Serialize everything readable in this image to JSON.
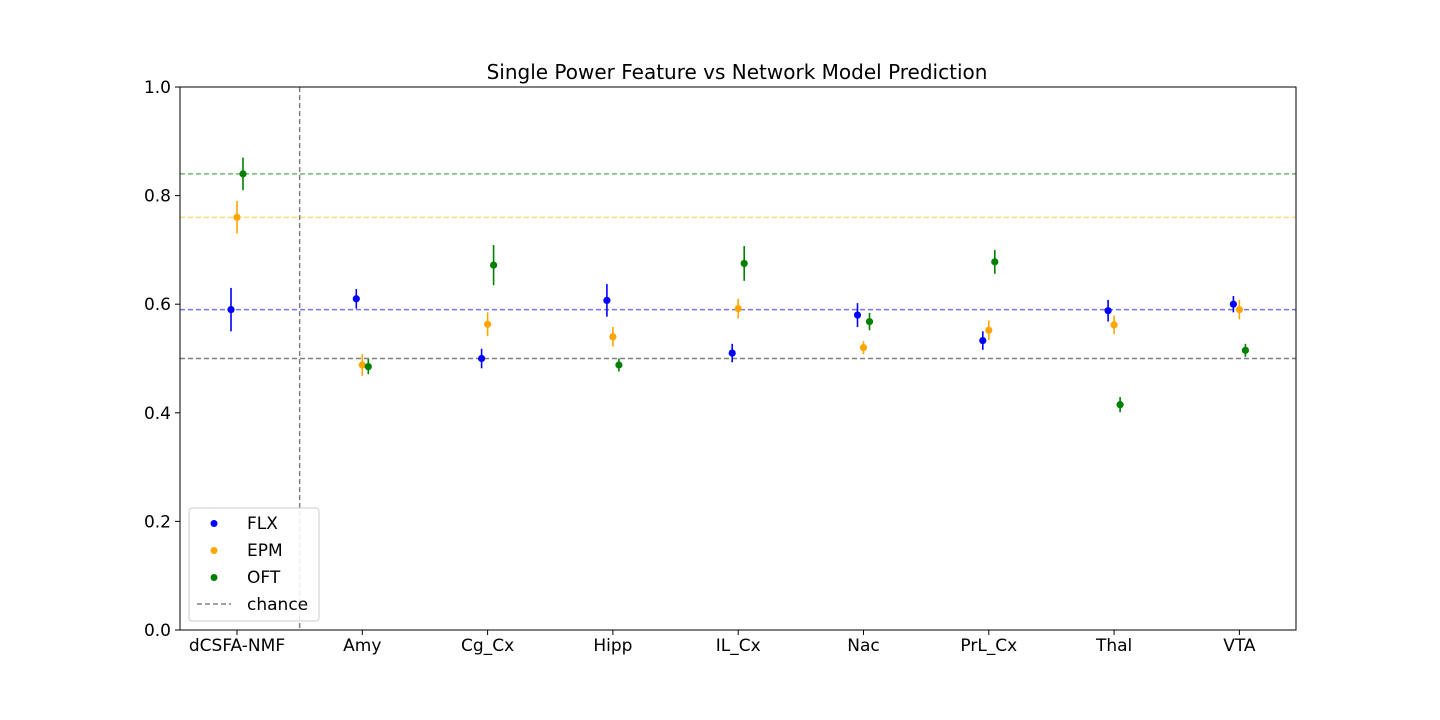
{
  "chart_data": {
    "type": "scatter",
    "title": "Single Power Feature vs Network Model Prediction",
    "xlabel": "",
    "ylabel": "",
    "ylim": [
      0.0,
      1.0
    ],
    "yticks": [
      "0.0",
      "0.2",
      "0.4",
      "0.6",
      "0.8",
      "1.0"
    ],
    "categories": [
      "dCSFA-NMF",
      "Amy",
      "Cg_Cx",
      "Hipp",
      "IL_Cx",
      "Nac",
      "PrL_Cx",
      "Thal",
      "VTA"
    ],
    "grid": false,
    "legend_position": "lower left",
    "series": [
      {
        "name": "FLX",
        "color": "#0000ff",
        "values": [
          0.59,
          0.61,
          0.5,
          0.607,
          0.51,
          0.58,
          0.533,
          0.588,
          0.6
        ],
        "errors": [
          0.04,
          0.018,
          0.018,
          0.03,
          0.017,
          0.022,
          0.017,
          0.02,
          0.015
        ]
      },
      {
        "name": "EPM",
        "color": "#ffa500",
        "values": [
          0.76,
          0.488,
          0.563,
          0.54,
          0.592,
          0.52,
          0.552,
          0.562,
          0.59
        ],
        "errors": [
          0.03,
          0.02,
          0.022,
          0.018,
          0.018,
          0.012,
          0.018,
          0.017,
          0.018
        ]
      },
      {
        "name": "OFT",
        "color": "#008000",
        "values": [
          0.84,
          0.485,
          0.672,
          0.488,
          0.675,
          0.568,
          0.678,
          0.415,
          0.515
        ],
        "errors": [
          0.03,
          0.014,
          0.037,
          0.012,
          0.032,
          0.016,
          0.022,
          0.014,
          0.012
        ]
      }
    ],
    "reference_lines": [
      {
        "value": 0.84,
        "color": "#008000"
      },
      {
        "value": 0.76,
        "color": "#ffc107"
      },
      {
        "value": 0.59,
        "color": "#0000ff"
      }
    ],
    "chance": {
      "name": "chance",
      "value": 0.5,
      "color": "#808080"
    },
    "separator_after_category": 0
  }
}
